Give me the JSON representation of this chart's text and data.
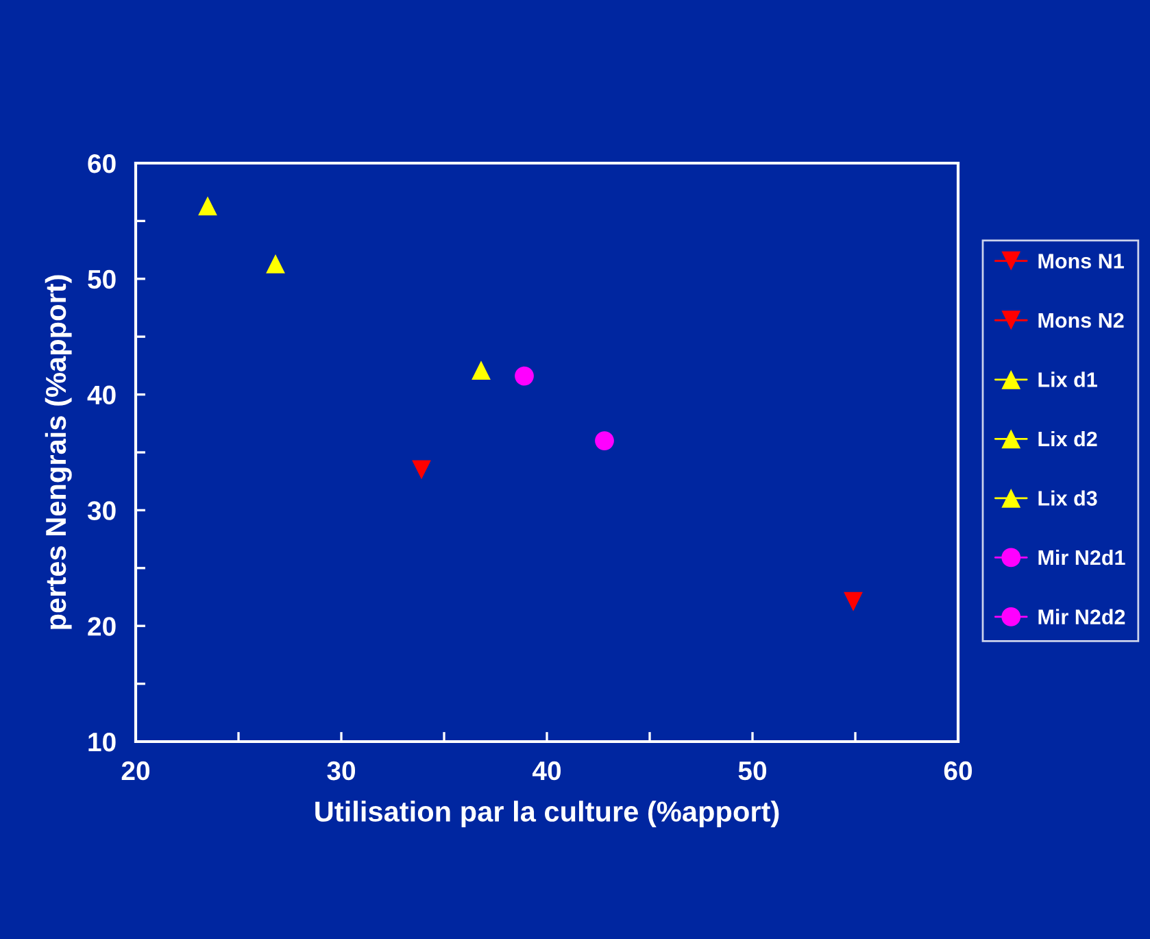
{
  "chart_data": {
    "type": "scatter",
    "xlabel": "Utilisation par la culture (%apport)",
    "ylabel": "pertes Nengrais (%apport)",
    "xlim": [
      20,
      60
    ],
    "ylim": [
      10,
      60
    ],
    "xticks": [
      20,
      {
        "value": 25,
        "label": null
      },
      30,
      {
        "value": 35,
        "label": null
      },
      40,
      {
        "value": 45,
        "label": null
      },
      50,
      {
        "value": 55,
        "label": null
      },
      60
    ],
    "yticks": [
      10,
      {
        "value": 15,
        "label": null
      },
      20,
      {
        "value": 25,
        "label": null
      },
      30,
      {
        "value": 35,
        "label": null
      },
      40,
      {
        "value": 45,
        "label": null
      },
      50,
      {
        "value": 55,
        "label": null
      },
      60
    ],
    "grid": false,
    "legend": "right",
    "series": [
      {
        "name": "Mons N1",
        "color": "#ff0000",
        "marker": "triangle_down",
        "x": [
          33.9
        ],
        "values": [
          33.5
        ]
      },
      {
        "name": "Mons N2",
        "color": "#ff0000",
        "marker": "triangle_down",
        "x": [
          54.9
        ],
        "values": [
          22.1
        ]
      },
      {
        "name": "Lix d1",
        "color": "#ffff00",
        "marker": "triangle",
        "x": [
          23.5
        ],
        "values": [
          56.3
        ]
      },
      {
        "name": "Lix d2",
        "color": "#ffff00",
        "marker": "triangle",
        "x": [
          26.8
        ],
        "values": [
          51.3
        ]
      },
      {
        "name": "Lix d3",
        "color": "#ffff00",
        "marker": "triangle",
        "x": [
          36.8
        ],
        "values": [
          42.1
        ]
      },
      {
        "name": "Mir N2d1",
        "color": "#ff00ff",
        "marker": "circle",
        "x": [
          38.9
        ],
        "values": [
          41.6
        ]
      },
      {
        "name": "Mir N2d2",
        "color": "#ff00ff",
        "marker": "circle",
        "x": [
          42.8
        ],
        "values": [
          36.0
        ]
      }
    ]
  }
}
